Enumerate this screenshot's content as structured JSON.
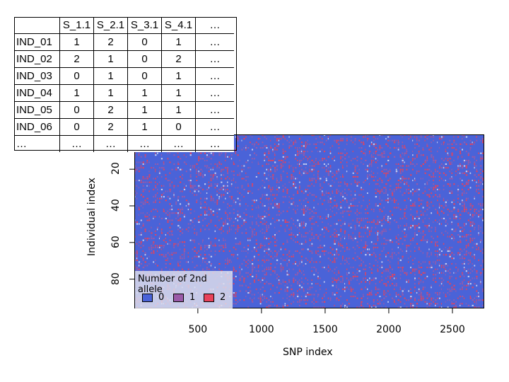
{
  "table": {
    "headers": [
      "",
      "S_1.1",
      "S_2.1",
      "S_3.1",
      "S_4.1",
      "…"
    ],
    "rows": [
      [
        "IND_01",
        "1",
        "2",
        "0",
        "1",
        "…"
      ],
      [
        "IND_02",
        "2",
        "1",
        "0",
        "2",
        "…"
      ],
      [
        "IND_03",
        "0",
        "1",
        "0",
        "1",
        "…"
      ],
      [
        "IND_04",
        "1",
        "1",
        "1",
        "1",
        "…"
      ],
      [
        "IND_05",
        "0",
        "2",
        "1",
        "1",
        "…"
      ],
      [
        "IND_06",
        "0",
        "2",
        "1",
        "0",
        "…"
      ],
      [
        "…",
        "…",
        "…",
        "…",
        "…",
        "…"
      ]
    ]
  },
  "chart_data": {
    "type": "heatmap",
    "xlabel": "SNP index",
    "ylabel": "Individual index",
    "xlim": [
      1,
      2750
    ],
    "ylim": [
      1,
      96
    ],
    "x_ticks": [
      "500",
      "1000",
      "1500",
      "2000",
      "2500"
    ],
    "x_tick_values": [
      500,
      1000,
      1500,
      2000,
      2500
    ],
    "y_ticks": [
      "20",
      "40",
      "60",
      "80"
    ],
    "y_tick_values": [
      20,
      40,
      60,
      80
    ],
    "n_individuals": 96,
    "n_snps": 2750,
    "approx_fraction": {
      "0": 0.78,
      "1": 0.12,
      "2": 0.1
    },
    "legend": {
      "title": "Number of 2nd allele",
      "placement": "bottom-left",
      "entries": [
        {
          "label": "0",
          "color": "#4a63d8"
        },
        {
          "label": "1",
          "color": "#9a5aa8"
        },
        {
          "label": "2",
          "color": "#e8425a"
        }
      ]
    }
  }
}
